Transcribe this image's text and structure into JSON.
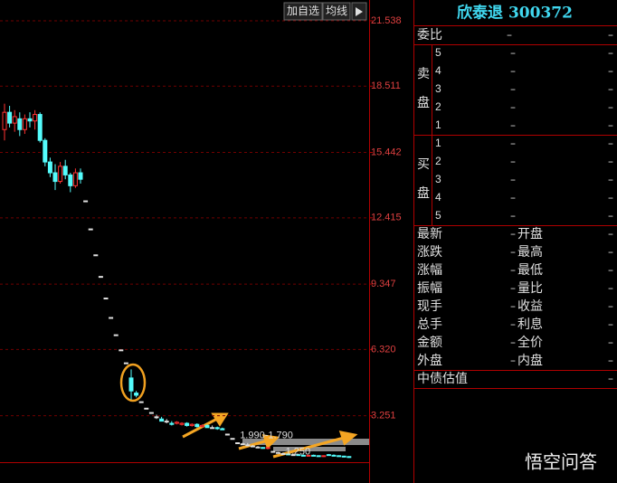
{
  "chart_data": {
    "type": "candlestick",
    "open": [
      16.5,
      17.3,
      16.8,
      17.0,
      16.5,
      17.0,
      16.9,
      17.2,
      16.0,
      15.0,
      14.5,
      14.1,
      14.8,
      14.4,
      13.9,
      14.5,
      13.2,
      11.9,
      10.7,
      9.7,
      8.7,
      7.8,
      7.0,
      6.3,
      5.7,
      5.0,
      4.3,
      3.9,
      3.6,
      3.4,
      3.2,
      3.1,
      3.0,
      2.9,
      2.9,
      2.85,
      2.9,
      2.8,
      2.85,
      2.75,
      2.8,
      2.7,
      2.7,
      2.65,
      2.4,
      2.2,
      2.0,
      1.95,
      1.9,
      1.85,
      1.8,
      1.78,
      1.75,
      1.6,
      1.55,
      1.5,
      1.48,
      1.45,
      1.45,
      1.42,
      1.4,
      1.42,
      1.4,
      1.38,
      1.45,
      1.42,
      1.4,
      1.38,
      1.36
    ],
    "high": [
      17.7,
      17.6,
      17.4,
      17.3,
      17.2,
      17.3,
      17.4,
      17.3,
      16.1,
      15.2,
      14.9,
      15.0,
      15.1,
      14.5,
      14.7,
      14.7,
      13.2,
      11.9,
      10.7,
      9.7,
      8.7,
      7.8,
      7.0,
      6.3,
      5.7,
      5.4,
      4.4,
      3.9,
      3.6,
      3.4,
      3.3,
      3.2,
      3.1,
      3.0,
      3.0,
      2.95,
      2.95,
      2.9,
      2.9,
      2.85,
      2.85,
      2.8,
      2.75,
      2.7,
      2.4,
      2.2,
      2.0,
      2.0,
      1.99,
      1.9,
      1.85,
      1.8,
      1.79,
      1.6,
      1.58,
      1.55,
      1.5,
      1.5,
      1.48,
      1.46,
      1.44,
      1.45,
      1.42,
      1.42,
      1.48,
      1.46,
      1.42,
      1.4,
      1.38
    ],
    "low": [
      16.0,
      16.6,
      16.4,
      16.2,
      16.3,
      16.6,
      16.5,
      15.9,
      14.8,
      14.3,
      13.7,
      14.0,
      14.2,
      13.6,
      13.8,
      14.0,
      13.2,
      11.9,
      10.7,
      9.7,
      8.7,
      7.8,
      7.0,
      6.3,
      5.7,
      4.0,
      4.1,
      3.9,
      3.6,
      3.4,
      3.1,
      3.0,
      2.9,
      2.8,
      2.85,
      2.8,
      2.75,
      2.75,
      2.7,
      2.7,
      2.7,
      2.65,
      2.6,
      2.6,
      2.4,
      2.2,
      2.0,
      1.9,
      1.85,
      1.8,
      1.75,
      1.72,
      1.7,
      1.6,
      1.5,
      1.45,
      1.42,
      1.4,
      1.4,
      1.38,
      1.36,
      1.38,
      1.35,
      1.34,
      1.4,
      1.38,
      1.35,
      1.32,
      1.3
    ],
    "close": [
      17.3,
      16.8,
      17.1,
      16.5,
      17.0,
      16.9,
      17.2,
      16.0,
      15.0,
      14.5,
      14.1,
      14.8,
      14.4,
      13.9,
      14.5,
      14.2,
      13.2,
      11.9,
      10.7,
      9.7,
      8.7,
      7.8,
      7.0,
      6.3,
      5.7,
      4.4,
      4.2,
      3.9,
      3.6,
      3.4,
      3.2,
      3.0,
      3.0,
      2.85,
      2.95,
      2.9,
      2.8,
      2.85,
      2.75,
      2.8,
      2.7,
      2.7,
      2.65,
      2.6,
      2.4,
      2.2,
      2.0,
      1.95,
      1.9,
      1.85,
      1.8,
      1.75,
      1.78,
      1.6,
      1.55,
      1.5,
      1.45,
      1.45,
      1.42,
      1.4,
      1.42,
      1.4,
      1.38,
      1.4,
      1.42,
      1.4,
      1.38,
      1.36,
      1.35
    ],
    "up_color": "#ff3232",
    "down_color": "#54fcfc",
    "flat_color": "#e0e0e0",
    "ylim": [
      1.1,
      22.5
    ],
    "yticks": [
      21.538,
      18.511,
      15.442,
      12.415,
      9.347,
      {
        "value": 6.32,
        "label": "6.320"
      },
      3.251
    ],
    "grid": true,
    "annotations": [
      {
        "text": "1.990-1.790",
        "x": 47,
        "y": 1.99
      },
      {
        "text": "1.250",
        "x": 56,
        "y": 1.25
      }
    ]
  },
  "toolbar": [
    "加自选",
    "均线"
  ],
  "quote": {
    "title": "欣泰退 300372",
    "weibi": [
      "委比",
      "–",
      "–"
    ],
    "sell": {
      "label": [
        "卖",
        "盘"
      ],
      "rows": [
        [
          "5",
          "–",
          "–"
        ],
        [
          "4",
          "–",
          "–"
        ],
        [
          "3",
          "–",
          "–"
        ],
        [
          "2",
          "–",
          "–"
        ],
        [
          "1",
          "–",
          "–"
        ]
      ]
    },
    "buy": {
      "label": [
        "买",
        "盘"
      ],
      "rows": [
        [
          "1",
          "–",
          "–"
        ],
        [
          "2",
          "–",
          "–"
        ],
        [
          "3",
          "–",
          "–"
        ],
        [
          "4",
          "–",
          "–"
        ],
        [
          "5",
          "–",
          "–"
        ]
      ]
    },
    "stats": [
      [
        "最新",
        "–",
        "开盘",
        "–"
      ],
      [
        "涨跌",
        "–",
        "最高",
        "–"
      ],
      [
        "涨幅",
        "–",
        "最低",
        "–"
      ],
      [
        "振幅",
        "–",
        "量比",
        "–"
      ],
      [
        "现手",
        "–",
        "收益",
        "–"
      ],
      [
        "总手",
        "–",
        "利息",
        "–"
      ],
      [
        "金额",
        "–",
        "全价",
        "–"
      ],
      [
        "外盘",
        "–",
        "内盘",
        "–"
      ]
    ],
    "bond": [
      "中债估值",
      "–"
    ]
  },
  "watermark": "悟空问答"
}
